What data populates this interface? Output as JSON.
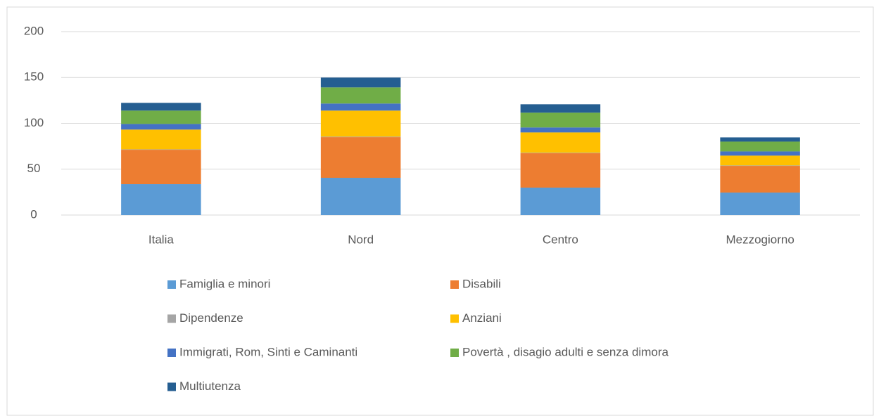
{
  "chart_data": {
    "type": "stacked-bar",
    "categories": [
      "Italia",
      "Nord",
      "Centro",
      "Mezzogiorno"
    ],
    "series": [
      {
        "name": "Famiglia e minori",
        "color": "#5b9bd5",
        "values": [
          33.7,
          40.6,
          29.9,
          24.5
        ]
      },
      {
        "name": "Disabili",
        "color": "#ed7d31",
        "values": [
          37.5,
          44.4,
          37.5,
          29.1
        ]
      },
      {
        "name": "Dipendenze",
        "color": "#a5a5a5",
        "values": [
          0.5,
          0.5,
          0.5,
          0.5
        ]
      },
      {
        "name": "Anziani",
        "color": "#ffc000",
        "values": [
          21.5,
          28.4,
          22.2,
          10.7
        ]
      },
      {
        "name": "Immigrati, Rom, Sinti e Caminanti",
        "color": "#4472c4",
        "values": [
          6.1,
          7.7,
          5.4,
          4.6
        ]
      },
      {
        "name": "Povertà , disagio adulti e senza dimora",
        "color": "#70ad47",
        "values": [
          14.6,
          17.6,
          16.1,
          10.7
        ]
      },
      {
        "name": "Multiutenza",
        "color": "#255e91",
        "values": [
          8.4,
          10.7,
          9.2,
          4.6
        ]
      }
    ],
    "ylim": [
      0,
      200
    ],
    "yticks": [
      0,
      50,
      100,
      150,
      200
    ],
    "grid": true,
    "legend": "bottom"
  }
}
